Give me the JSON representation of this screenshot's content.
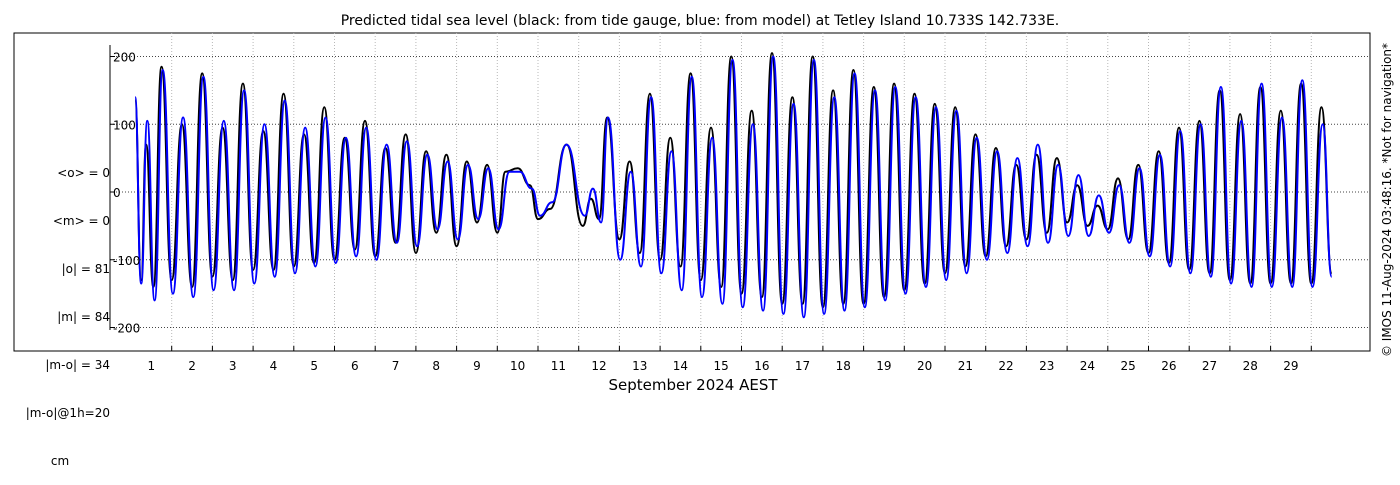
{
  "chart_data": {
    "type": "line",
    "title": "Predicted tidal sea level (black: from tide gauge, blue: from model) at Tetley Island 10.733S 142.733E.",
    "xlabel": "September 2024 AEST",
    "ylabel": "",
    "ylim": [
      -220,
      220
    ],
    "xlim": [
      0.6,
      30.0
    ],
    "yticks": [
      -200,
      -100,
      0,
      100,
      200
    ],
    "xticks": [
      "1",
      "2",
      "3",
      "4",
      "5",
      "6",
      "7",
      "8",
      "9",
      "10",
      "11",
      "12",
      "13",
      "14",
      "15",
      "16",
      "17",
      "18",
      "19",
      "20",
      "21",
      "22",
      "23",
      "24",
      "25",
      "26",
      "27",
      "28",
      "29"
    ],
    "grid": true,
    "stats": [
      "<o> = 0",
      "<m> = 0",
      "|o| = 81",
      "|m| = 84",
      "|m-o| = 34",
      "|m-o|@1h=20"
    ],
    "stats_unit": "cm",
    "watermark": "© IMOS 11-Aug-2024 03:48:16. *Not for navigation*",
    "series": [
      {
        "name": "from tide gauge",
        "color": "#000000",
        "peaks": [
          {
            "day": 0.6,
            "v": 135
          },
          {
            "day": 0.75,
            "v": -130
          },
          {
            "day": 0.87,
            "v": 70
          },
          {
            "day": 1.05,
            "v": -140
          },
          {
            "day": 1.25,
            "v": 185
          },
          {
            "day": 1.5,
            "v": -130
          },
          {
            "day": 1.75,
            "v": 100
          },
          {
            "day": 2.0,
            "v": -140
          },
          {
            "day": 2.25,
            "v": 175
          },
          {
            "day": 2.5,
            "v": -125
          },
          {
            "day": 2.75,
            "v": 95
          },
          {
            "day": 3.0,
            "v": -130
          },
          {
            "day": 3.25,
            "v": 160
          },
          {
            "day": 3.5,
            "v": -115
          },
          {
            "day": 3.75,
            "v": 90
          },
          {
            "day": 4.0,
            "v": -115
          },
          {
            "day": 4.25,
            "v": 145
          },
          {
            "day": 4.5,
            "v": -110
          },
          {
            "day": 4.75,
            "v": 85
          },
          {
            "day": 5.0,
            "v": -105
          },
          {
            "day": 5.25,
            "v": 125
          },
          {
            "day": 5.5,
            "v": -100
          },
          {
            "day": 5.75,
            "v": 80
          },
          {
            "day": 6.0,
            "v": -85
          },
          {
            "day": 6.25,
            "v": 105
          },
          {
            "day": 6.5,
            "v": -95
          },
          {
            "day": 6.75,
            "v": 65
          },
          {
            "day": 7.0,
            "v": -75
          },
          {
            "day": 7.25,
            "v": 85
          },
          {
            "day": 7.5,
            "v": -90
          },
          {
            "day": 7.75,
            "v": 60
          },
          {
            "day": 8.0,
            "v": -60
          },
          {
            "day": 8.25,
            "v": 55
          },
          {
            "day": 8.5,
            "v": -80
          },
          {
            "day": 8.75,
            "v": 45
          },
          {
            "day": 9.0,
            "v": -45
          },
          {
            "day": 9.25,
            "v": 40
          },
          {
            "day": 9.5,
            "v": -60
          },
          {
            "day": 9.7,
            "v": 30
          },
          {
            "day": 10.0,
            "v": 35
          },
          {
            "day": 10.3,
            "v": 10
          },
          {
            "day": 10.5,
            "v": -40
          },
          {
            "day": 10.8,
            "v": -25
          },
          {
            "day": 11.2,
            "v": 70
          },
          {
            "day": 11.6,
            "v": -50
          },
          {
            "day": 11.8,
            "v": -10
          },
          {
            "day": 12.0,
            "v": -40
          },
          {
            "day": 12.2,
            "v": 110
          },
          {
            "day": 12.5,
            "v": -70
          },
          {
            "day": 12.75,
            "v": 45
          },
          {
            "day": 13.0,
            "v": -90
          },
          {
            "day": 13.25,
            "v": 145
          },
          {
            "day": 13.5,
            "v": -100
          },
          {
            "day": 13.75,
            "v": 80
          },
          {
            "day": 14.0,
            "v": -110
          },
          {
            "day": 14.25,
            "v": 175
          },
          {
            "day": 14.5,
            "v": -130
          },
          {
            "day": 14.75,
            "v": 95
          },
          {
            "day": 15.0,
            "v": -140
          },
          {
            "day": 15.25,
            "v": 200
          },
          {
            "day": 15.5,
            "v": -150
          },
          {
            "day": 15.75,
            "v": 120
          },
          {
            "day": 16.0,
            "v": -155
          },
          {
            "day": 16.25,
            "v": 205
          },
          {
            "day": 16.5,
            "v": -165
          },
          {
            "day": 16.75,
            "v": 140
          },
          {
            "day": 17.0,
            "v": -165
          },
          {
            "day": 17.25,
            "v": 200
          },
          {
            "day": 17.5,
            "v": -170
          },
          {
            "day": 17.75,
            "v": 150
          },
          {
            "day": 18.0,
            "v": -165
          },
          {
            "day": 18.25,
            "v": 180
          },
          {
            "day": 18.5,
            "v": -165
          },
          {
            "day": 18.75,
            "v": 155
          },
          {
            "day": 19.0,
            "v": -155
          },
          {
            "day": 19.25,
            "v": 160
          },
          {
            "day": 19.5,
            "v": -145
          },
          {
            "day": 19.75,
            "v": 145
          },
          {
            "day": 20.0,
            "v": -135
          },
          {
            "day": 20.25,
            "v": 130
          },
          {
            "day": 20.5,
            "v": -120
          },
          {
            "day": 20.75,
            "v": 125
          },
          {
            "day": 21.0,
            "v": -110
          },
          {
            "day": 21.25,
            "v": 85
          },
          {
            "day": 21.5,
            "v": -95
          },
          {
            "day": 21.75,
            "v": 65
          },
          {
            "day": 22.0,
            "v": -80
          },
          {
            "day": 22.25,
            "v": 40
          },
          {
            "day": 22.5,
            "v": -70
          },
          {
            "day": 22.75,
            "v": 55
          },
          {
            "day": 23.0,
            "v": -60
          },
          {
            "day": 23.25,
            "v": 50
          },
          {
            "day": 23.5,
            "v": -45
          },
          {
            "day": 23.75,
            "v": 10
          },
          {
            "day": 24.0,
            "v": -50
          },
          {
            "day": 24.25,
            "v": -20
          },
          {
            "day": 24.5,
            "v": -55
          },
          {
            "day": 24.75,
            "v": 20
          },
          {
            "day": 25.0,
            "v": -70
          },
          {
            "day": 25.25,
            "v": 40
          },
          {
            "day": 25.5,
            "v": -90
          },
          {
            "day": 25.75,
            "v": 60
          },
          {
            "day": 26.0,
            "v": -105
          },
          {
            "day": 26.25,
            "v": 95
          },
          {
            "day": 26.5,
            "v": -115
          },
          {
            "day": 26.75,
            "v": 105
          },
          {
            "day": 27.0,
            "v": -120
          },
          {
            "day": 27.25,
            "v": 150
          },
          {
            "day": 27.5,
            "v": -130
          },
          {
            "day": 27.75,
            "v": 115
          },
          {
            "day": 28.0,
            "v": -135
          },
          {
            "day": 28.25,
            "v": 155
          },
          {
            "day": 28.5,
            "v": -135
          },
          {
            "day": 28.75,
            "v": 120
          },
          {
            "day": 29.0,
            "v": -135
          },
          {
            "day": 29.25,
            "v": 160
          },
          {
            "day": 29.5,
            "v": -135
          },
          {
            "day": 29.75,
            "v": 125
          },
          {
            "day": 30.0,
            "v": -120
          }
        ]
      },
      {
        "name": "from model",
        "color": "#0000ff",
        "peaks": [
          {
            "day": 0.6,
            "v": 140
          },
          {
            "day": 0.75,
            "v": -135
          },
          {
            "day": 0.9,
            "v": 105
          },
          {
            "day": 1.08,
            "v": -160
          },
          {
            "day": 1.28,
            "v": 180
          },
          {
            "day": 1.53,
            "v": -150
          },
          {
            "day": 1.78,
            "v": 110
          },
          {
            "day": 2.03,
            "v": -155
          },
          {
            "day": 2.28,
            "v": 170
          },
          {
            "day": 2.53,
            "v": -145
          },
          {
            "day": 2.78,
            "v": 105
          },
          {
            "day": 3.03,
            "v": -145
          },
          {
            "day": 3.28,
            "v": 150
          },
          {
            "day": 3.53,
            "v": -135
          },
          {
            "day": 3.78,
            "v": 100
          },
          {
            "day": 4.03,
            "v": -125
          },
          {
            "day": 4.28,
            "v": 135
          },
          {
            "day": 4.53,
            "v": -120
          },
          {
            "day": 4.78,
            "v": 95
          },
          {
            "day": 5.03,
            "v": -110
          },
          {
            "day": 5.28,
            "v": 110
          },
          {
            "day": 5.53,
            "v": -105
          },
          {
            "day": 5.78,
            "v": 80
          },
          {
            "day": 6.03,
            "v": -95
          },
          {
            "day": 6.28,
            "v": 95
          },
          {
            "day": 6.53,
            "v": -100
          },
          {
            "day": 6.78,
            "v": 70
          },
          {
            "day": 7.03,
            "v": -75
          },
          {
            "day": 7.28,
            "v": 75
          },
          {
            "day": 7.53,
            "v": -80
          },
          {
            "day": 7.78,
            "v": 55
          },
          {
            "day": 8.03,
            "v": -55
          },
          {
            "day": 8.28,
            "v": 45
          },
          {
            "day": 8.53,
            "v": -70
          },
          {
            "day": 8.78,
            "v": 40
          },
          {
            "day": 9.03,
            "v": -40
          },
          {
            "day": 9.28,
            "v": 35
          },
          {
            "day": 9.53,
            "v": -55
          },
          {
            "day": 9.8,
            "v": 30
          },
          {
            "day": 10.05,
            "v": 30
          },
          {
            "day": 10.35,
            "v": 5
          },
          {
            "day": 10.55,
            "v": -35
          },
          {
            "day": 10.85,
            "v": -15
          },
          {
            "day": 11.2,
            "v": 70
          },
          {
            "day": 11.65,
            "v": -35
          },
          {
            "day": 11.85,
            "v": 5
          },
          {
            "day": 12.05,
            "v": -45
          },
          {
            "day": 12.22,
            "v": 110
          },
          {
            "day": 12.52,
            "v": -100
          },
          {
            "day": 12.78,
            "v": 30
          },
          {
            "day": 13.03,
            "v": -110
          },
          {
            "day": 13.28,
            "v": 140
          },
          {
            "day": 13.53,
            "v": -120
          },
          {
            "day": 13.78,
            "v": 60
          },
          {
            "day": 14.03,
            "v": -145
          },
          {
            "day": 14.28,
            "v": 170
          },
          {
            "day": 14.53,
            "v": -155
          },
          {
            "day": 14.78,
            "v": 80
          },
          {
            "day": 15.03,
            "v": -165
          },
          {
            "day": 15.28,
            "v": 195
          },
          {
            "day": 15.53,
            "v": -170
          },
          {
            "day": 15.78,
            "v": 100
          },
          {
            "day": 16.03,
            "v": -175
          },
          {
            "day": 16.28,
            "v": 200
          },
          {
            "day": 16.53,
            "v": -180
          },
          {
            "day": 16.78,
            "v": 130
          },
          {
            "day": 17.03,
            "v": -185
          },
          {
            "day": 17.28,
            "v": 195
          },
          {
            "day": 17.53,
            "v": -180
          },
          {
            "day": 17.78,
            "v": 140
          },
          {
            "day": 18.03,
            "v": -175
          },
          {
            "day": 18.28,
            "v": 175
          },
          {
            "day": 18.53,
            "v": -170
          },
          {
            "day": 18.78,
            "v": 150
          },
          {
            "day": 19.03,
            "v": -160
          },
          {
            "day": 19.28,
            "v": 155
          },
          {
            "day": 19.53,
            "v": -150
          },
          {
            "day": 19.78,
            "v": 140
          },
          {
            "day": 20.03,
            "v": -140
          },
          {
            "day": 20.28,
            "v": 125
          },
          {
            "day": 20.53,
            "v": -130
          },
          {
            "day": 20.78,
            "v": 120
          },
          {
            "day": 21.03,
            "v": -120
          },
          {
            "day": 21.28,
            "v": 80
          },
          {
            "day": 21.53,
            "v": -100
          },
          {
            "day": 21.78,
            "v": 60
          },
          {
            "day": 22.03,
            "v": -90
          },
          {
            "day": 22.28,
            "v": 50
          },
          {
            "day": 22.53,
            "v": -80
          },
          {
            "day": 22.78,
            "v": 70
          },
          {
            "day": 23.03,
            "v": -75
          },
          {
            "day": 23.28,
            "v": 40
          },
          {
            "day": 23.53,
            "v": -65
          },
          {
            "day": 23.78,
            "v": 25
          },
          {
            "day": 24.03,
            "v": -65
          },
          {
            "day": 24.28,
            "v": -5
          },
          {
            "day": 24.53,
            "v": -60
          },
          {
            "day": 24.78,
            "v": 10
          },
          {
            "day": 25.03,
            "v": -75
          },
          {
            "day": 25.28,
            "v": 35
          },
          {
            "day": 25.53,
            "v": -95
          },
          {
            "day": 25.78,
            "v": 55
          },
          {
            "day": 26.03,
            "v": -110
          },
          {
            "day": 26.28,
            "v": 90
          },
          {
            "day": 26.53,
            "v": -120
          },
          {
            "day": 26.78,
            "v": 100
          },
          {
            "day": 27.03,
            "v": -125
          },
          {
            "day": 27.28,
            "v": 155
          },
          {
            "day": 27.53,
            "v": -135
          },
          {
            "day": 27.78,
            "v": 105
          },
          {
            "day": 28.03,
            "v": -140
          },
          {
            "day": 28.28,
            "v": 160
          },
          {
            "day": 28.53,
            "v": -140
          },
          {
            "day": 28.78,
            "v": 110
          },
          {
            "day": 29.03,
            "v": -140
          },
          {
            "day": 29.28,
            "v": 165
          },
          {
            "day": 29.53,
            "v": -140
          },
          {
            "day": 29.78,
            "v": 100
          },
          {
            "day": 30.0,
            "v": -125
          }
        ]
      }
    ]
  }
}
